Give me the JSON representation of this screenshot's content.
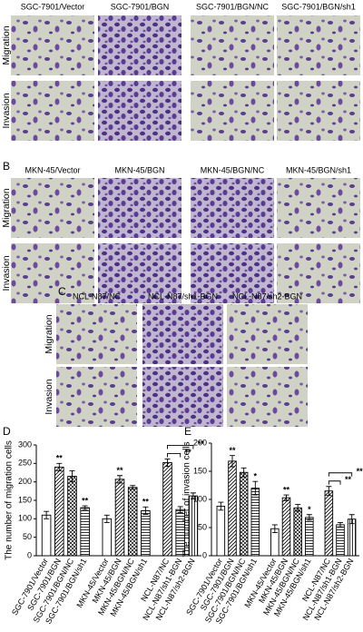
{
  "panels": [
    {
      "columns": [
        "SGC-7901/Vector",
        "SGC-7901/BGN",
        "SGC-7901/BGN/NC",
        "SGC-7901/BGN/sh1"
      ],
      "rows": [
        "Migration",
        "Invasion"
      ]
    },
    {
      "letter": "B",
      "columns": [
        "MKN-45/Vector",
        "MKN-45/BGN",
        "MKN-45/BGN/NC",
        "MKN-45/BGN/sh1"
      ],
      "rows": [
        "Migration",
        "Invasion"
      ]
    },
    {
      "letter": "C",
      "columns": [
        "NCL-N87/NC",
        "NCL-N87/sh1-BGN",
        "NCL-N87/sh2-BGN"
      ],
      "rows": [
        "Migration",
        "Invasion"
      ]
    }
  ],
  "chart_data": [
    {
      "type": "bar",
      "letter": "D",
      "ylabel": "The number of migration cells",
      "categories": [
        "SGC-7901/Vector",
        "SGC-7901/BGN",
        "SGC-7901/BGN/NC",
        "SGC-7901/BGN/sh1",
        "MKN-45/Vector",
        "MKN-45/BGN",
        "MKN-45/BGN/NC",
        "MKN-45/BGN/sh1",
        "NCL-N87/NC",
        "NCL-N87/sh1-BGN",
        "NCL-N87/sh2-BGN"
      ],
      "values": [
        110,
        240,
        215,
        130,
        100,
        207,
        185,
        122,
        252,
        125,
        162
      ],
      "errors": [
        10,
        10,
        15,
        5,
        10,
        10,
        5,
        10,
        10,
        8,
        8
      ],
      "patterns": [
        "open",
        "diagonal",
        "crosshatch",
        "horizontal",
        "open",
        "diagonal",
        "crosshatch",
        "horizontal",
        "diagonal",
        "horizontal",
        "vertical"
      ],
      "significance": [
        null,
        "**",
        null,
        "**",
        null,
        "**",
        null,
        "**",
        null,
        null,
        null
      ],
      "brackets": [
        {
          "categories": [
            8,
            9
          ],
          "label": "**"
        },
        {
          "categories": [
            8,
            10
          ],
          "label": "**"
        }
      ],
      "ylim": [
        0,
        300
      ],
      "yticks": [
        0,
        50,
        100,
        150,
        200,
        250,
        300
      ]
    },
    {
      "type": "bar",
      "letter": "E",
      "ylabel": "The number of invasion cells",
      "categories": [
        "SGC-7901/Vector",
        "SGC-7901/BGN",
        "SGC-7901/BGN/NC",
        "SGC-7901/BGN/sh1",
        "MKN-45/Vector",
        "MKN-45/BGN",
        "MKN-45/BGN/NC",
        "MKN-45/BGN/sh1",
        "NCL-N87/NC",
        "NCL-N87/sh1-BGN",
        "NCL-N87/sh2-BGN"
      ],
      "values": [
        88,
        168,
        148,
        120,
        48,
        103,
        85,
        68,
        115,
        55,
        65
      ],
      "errors": [
        7,
        10,
        8,
        12,
        7,
        5,
        6,
        5,
        8,
        4,
        8
      ],
      "patterns": [
        "open",
        "diagonal",
        "crosshatch",
        "horizontal",
        "open",
        "diagonal",
        "crosshatch",
        "horizontal",
        "diagonal",
        "horizontal",
        "vertical"
      ],
      "significance": [
        null,
        "**",
        null,
        "*",
        null,
        "**",
        null,
        "*",
        null,
        null,
        null
      ],
      "brackets": [
        {
          "categories": [
            8,
            9
          ],
          "label": "**"
        },
        {
          "categories": [
            8,
            10
          ],
          "label": "**"
        }
      ],
      "ylim": [
        0,
        200
      ],
      "yticks": [
        0,
        50,
        100,
        150,
        200
      ]
    }
  ]
}
